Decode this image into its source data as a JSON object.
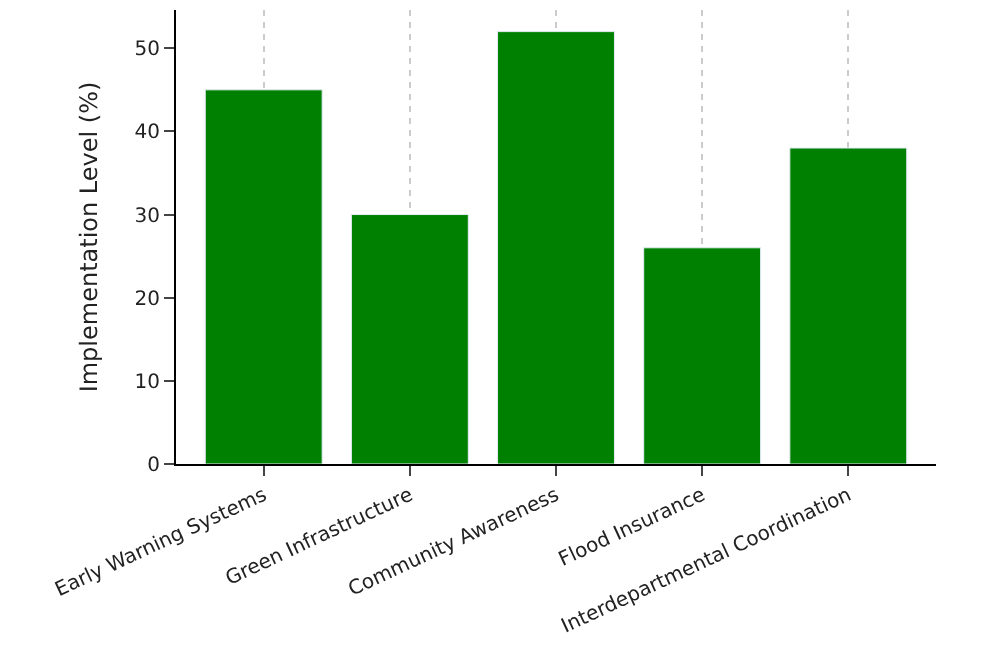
{
  "chart_data": {
    "type": "bar",
    "categories": [
      "Early Warning Systems",
      "Green Infrastructure",
      "Community Awareness",
      "Flood Insurance",
      "Interdepartmental Coordination"
    ],
    "values": [
      45,
      30,
      52,
      26,
      38
    ],
    "color": "#008000",
    "ylabel": "Implementation Level (%)",
    "ylim": [
      0,
      54.6
    ],
    "yticks": [
      0,
      10,
      20,
      30,
      40,
      50
    ],
    "grid": "x"
  }
}
